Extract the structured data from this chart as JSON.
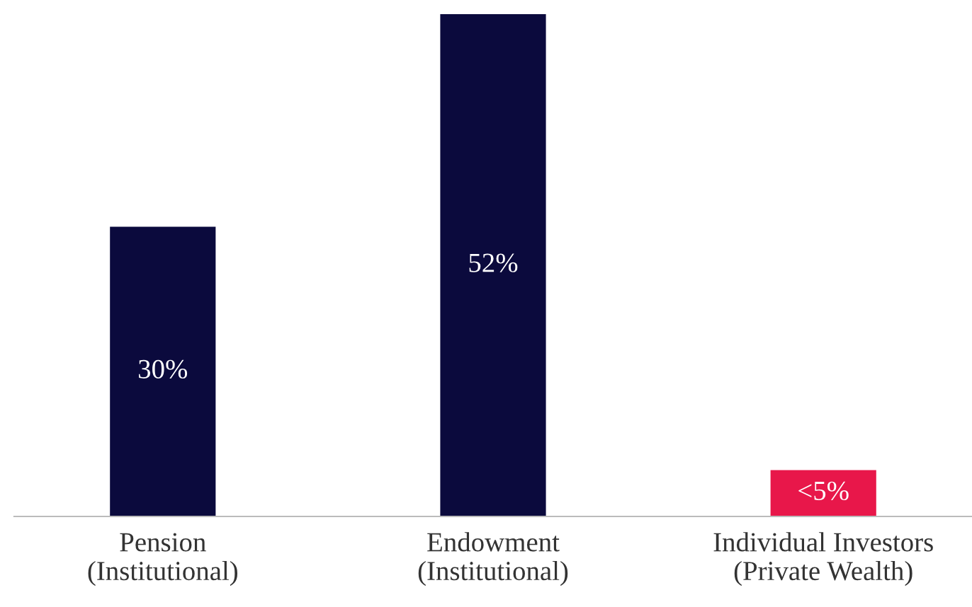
{
  "chart_data": {
    "type": "bar",
    "categories": [
      "Pension\n(Institutional)",
      "Endowment\n(Institutional)",
      "Individual Investors\n(Private Wealth)"
    ],
    "values": [
      30,
      52,
      4.8
    ],
    "colors": [
      "#0b0a3d",
      "#0b0a3d",
      "#e8174a"
    ],
    "value_labels": [
      "30%",
      "52%",
      "<5%"
    ],
    "ylim": [
      0,
      52
    ],
    "tick_labels": "x",
    "grid": false,
    "legend": false
  }
}
